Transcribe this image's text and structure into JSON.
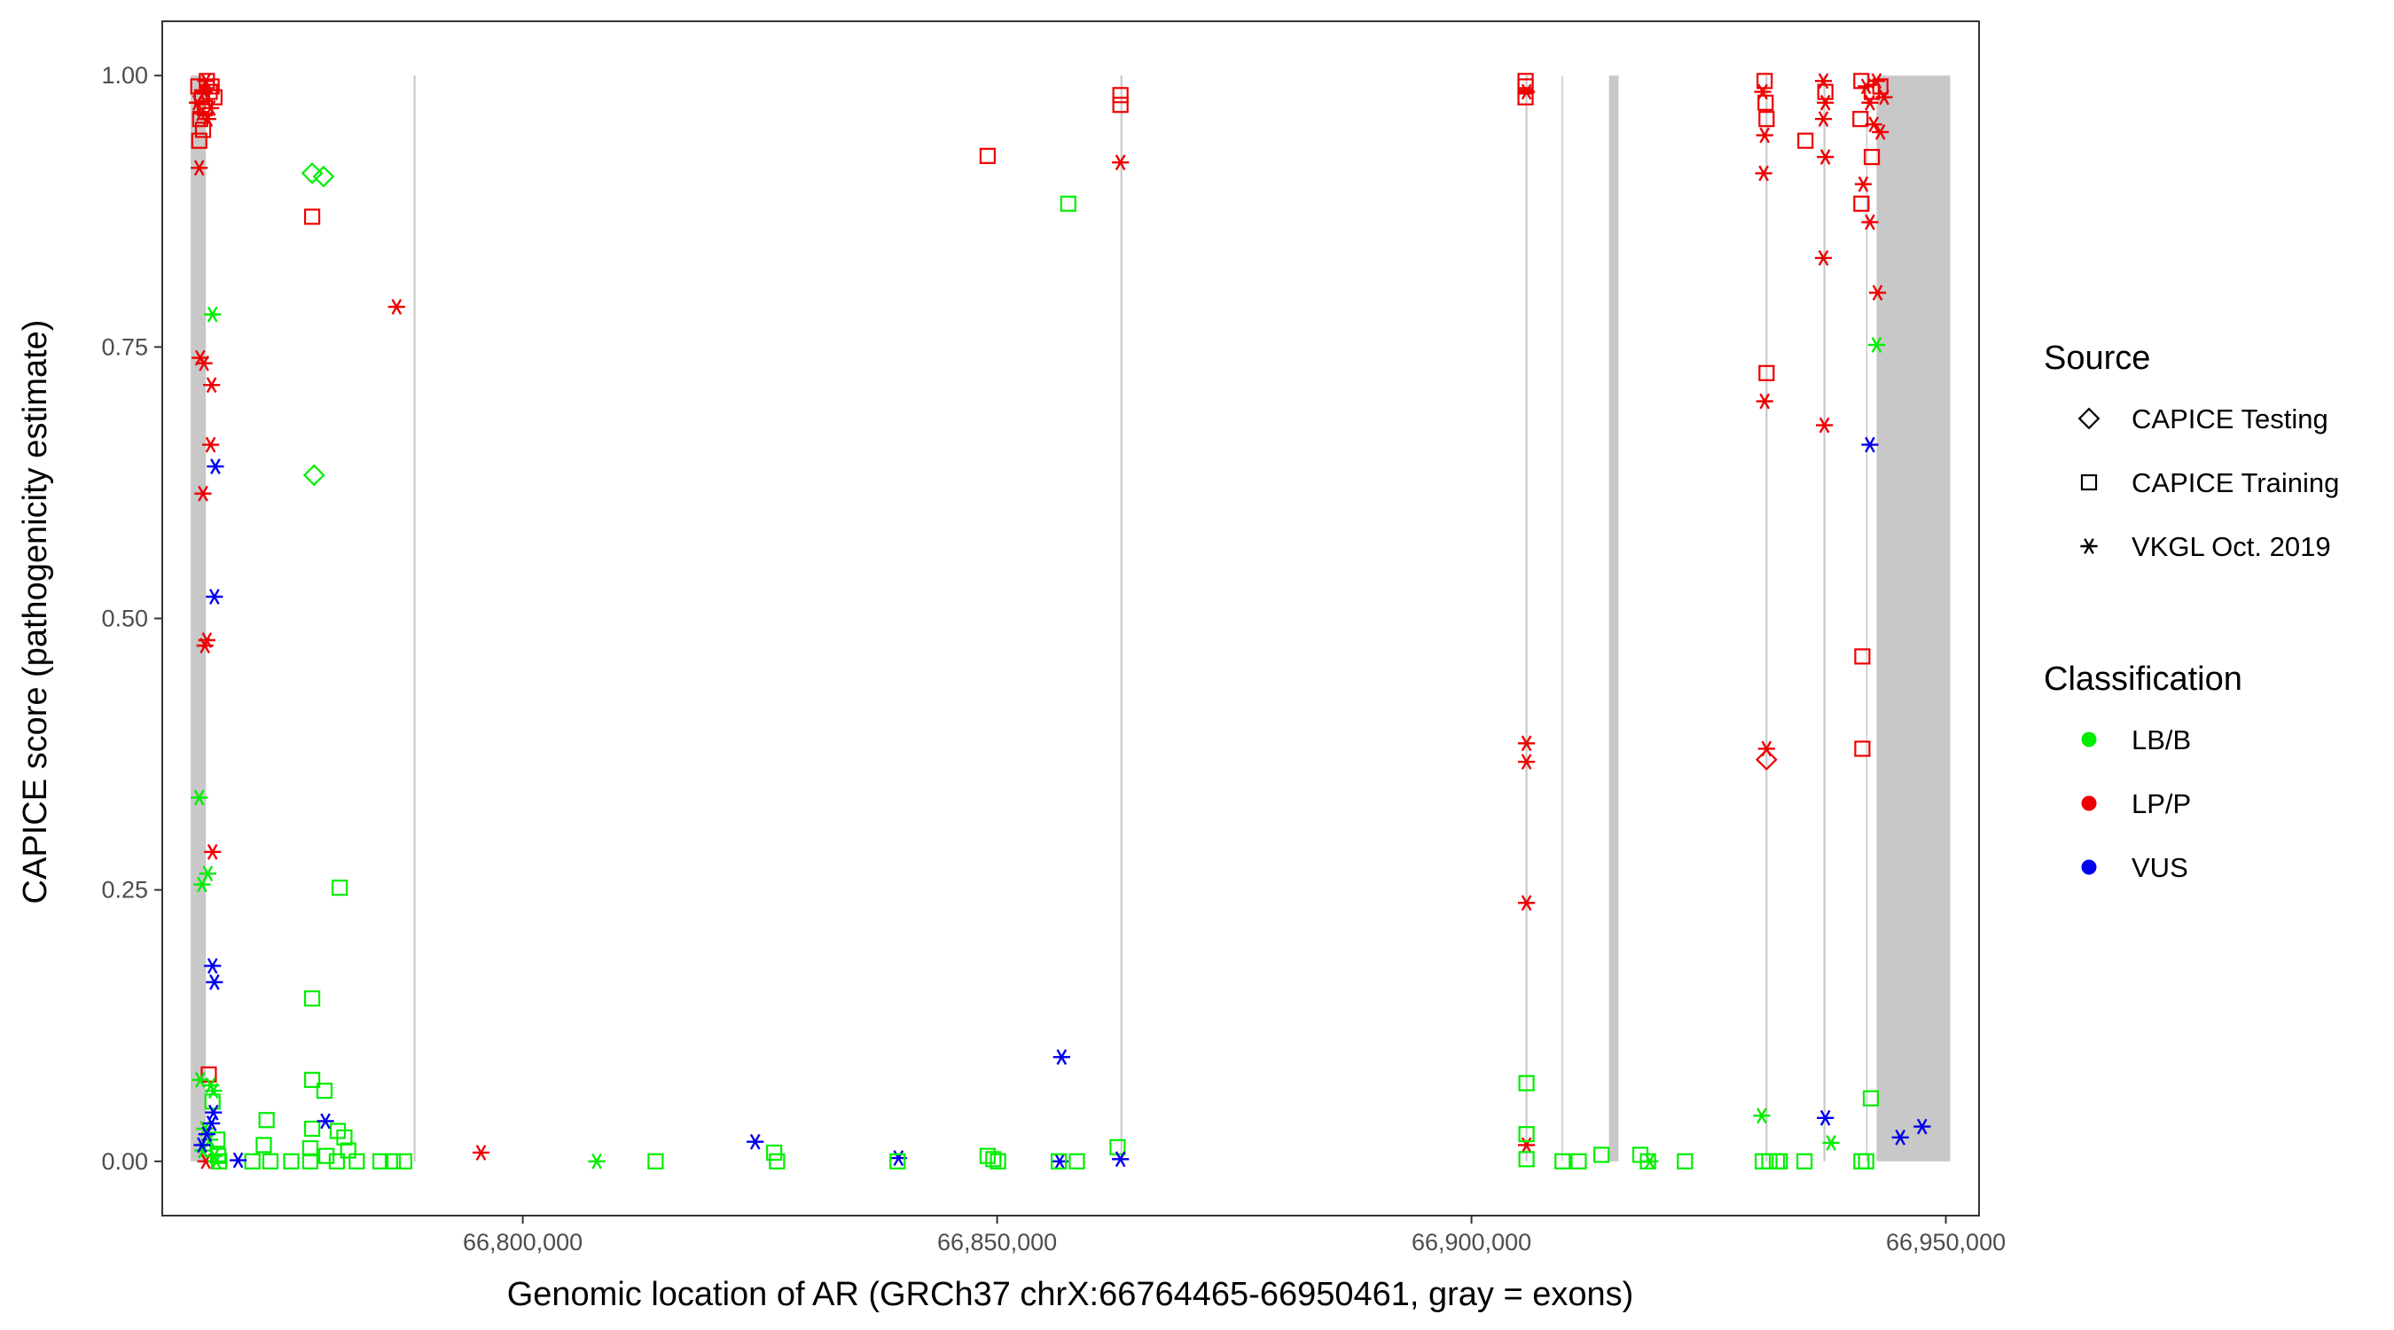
{
  "chart_data": {
    "type": "scatter",
    "title": "",
    "xlabel": "Genomic location of AR (GRCh37 chrX:66764465-66950461, gray = exons)",
    "ylabel": "CAPICE score (pathogenicity estimate)",
    "xlim": [
      66762000,
      66953500
    ],
    "ylim": [
      -0.05,
      1.05
    ],
    "xticks": [
      66800000,
      66850000,
      66900000,
      66950000
    ],
    "xtick_labels": [
      "66,800,000",
      "66,850,000",
      "66,900,000",
      "66,950,000"
    ],
    "yticks": [
      0,
      0.25,
      0.5,
      0.75,
      1
    ],
    "ytick_labels": [
      "0.00",
      "0.25",
      "0.50",
      "0.75",
      "1.00"
    ],
    "grid": false,
    "exons": [
      [
        66765000,
        66766600
      ],
      [
        66788500,
        66788700
      ],
      [
        66863000,
        66863200
      ],
      [
        66905700,
        66905900
      ],
      [
        66909500,
        66909600
      ],
      [
        66914500,
        66915500
      ],
      [
        66931000,
        66931200
      ],
      [
        66937100,
        66937300
      ],
      [
        66941600,
        66941700
      ],
      [
        66942700,
        66950461
      ]
    ],
    "legend": {
      "source_title": "Source",
      "source_items": [
        {
          "label": "CAPICE Testing",
          "shape": "diamond"
        },
        {
          "label": "CAPICE Training",
          "shape": "square"
        },
        {
          "label": "VKGL Oct. 2019",
          "shape": "asterisk"
        }
      ],
      "class_title": "Classification",
      "class_items": [
        {
          "label": "LB/B",
          "color": "#00ee00"
        },
        {
          "label": "LP/P",
          "color": "#ee0000"
        },
        {
          "label": "VUS",
          "color": "#0000ee"
        }
      ],
      "placement": "right"
    },
    "colors": {
      "LB/B": "#00ee00",
      "LP/P": "#ee0000",
      "VUS": "#0000ee"
    },
    "points": [
      [
        66765800,
        0.99,
        "training",
        "LP/P"
      ],
      [
        66766200,
        0.98,
        "training",
        "LP/P"
      ],
      [
        66766500,
        0.97,
        "training",
        "LP/P"
      ],
      [
        66766000,
        0.96,
        "training",
        "LP/P"
      ],
      [
        66766700,
        0.995,
        "training",
        "LP/P"
      ],
      [
        66767200,
        0.99,
        "training",
        "LP/P"
      ],
      [
        66767000,
        0.985,
        "training",
        "LP/P"
      ],
      [
        66765900,
        0.94,
        "training",
        "LP/P"
      ],
      [
        66766300,
        0.95,
        "training",
        "LP/P"
      ],
      [
        66767500,
        0.98,
        "training",
        "LP/P"
      ],
      [
        66765700,
        0.975,
        "vkgl",
        "LP/P"
      ],
      [
        66766100,
        0.965,
        "vkgl",
        "LP/P"
      ],
      [
        66766400,
        0.985,
        "vkgl",
        "LP/P"
      ],
      [
        66766800,
        0.96,
        "vkgl",
        "LP/P"
      ],
      [
        66767100,
        0.97,
        "vkgl",
        "LP/P"
      ],
      [
        66765900,
        0.915,
        "vkgl",
        "LP/P"
      ],
      [
        66766600,
        0.995,
        "vkgl",
        "LP/P"
      ],
      [
        66766000,
        0.74,
        "vkgl",
        "LP/P"
      ],
      [
        66766400,
        0.735,
        "vkgl",
        "LP/P"
      ],
      [
        66767200,
        0.715,
        "vkgl",
        "LP/P"
      ],
      [
        66767100,
        0.66,
        "vkgl",
        "LP/P"
      ],
      [
        66766300,
        0.615,
        "vkgl",
        "LP/P"
      ],
      [
        66766700,
        0.48,
        "vkgl",
        "LP/P"
      ],
      [
        66766500,
        0.475,
        "vkgl",
        "LP/P"
      ],
      [
        66767300,
        0.285,
        "vkgl",
        "LP/P"
      ],
      [
        66766900,
        0.08,
        "training",
        "LP/P"
      ],
      [
        66766600,
        0.0,
        "vkgl",
        "LP/P"
      ],
      [
        66767300,
        0.78,
        "vkgl",
        "LB/B"
      ],
      [
        66765900,
        0.335,
        "vkgl",
        "LB/B"
      ],
      [
        66766200,
        0.255,
        "vkgl",
        "LB/B"
      ],
      [
        66766800,
        0.265,
        "vkgl",
        "LB/B"
      ],
      [
        66766000,
        0.075,
        "vkgl",
        "LB/B"
      ],
      [
        66767100,
        0.07,
        "vkgl",
        "LB/B"
      ],
      [
        66767400,
        0.065,
        "vkgl",
        "LB/B"
      ],
      [
        66766500,
        0.03,
        "vkgl",
        "LB/B"
      ],
      [
        66767000,
        0.02,
        "vkgl",
        "LB/B"
      ],
      [
        66766300,
        0.01,
        "vkgl",
        "LB/B"
      ],
      [
        66767500,
        0.005,
        "vkgl",
        "LB/B"
      ],
      [
        66767700,
        0.0,
        "vkgl",
        "LB/B"
      ],
      [
        66767300,
        0.055,
        "training",
        "LB/B"
      ],
      [
        66767800,
        0.02,
        "training",
        "LB/B"
      ],
      [
        66767900,
        0.005,
        "training",
        "LB/B"
      ],
      [
        66768000,
        0.0,
        "training",
        "LB/B"
      ],
      [
        66767600,
        0.64,
        "vkgl",
        "VUS"
      ],
      [
        66767500,
        0.52,
        "vkgl",
        "VUS"
      ],
      [
        66767300,
        0.18,
        "vkgl",
        "VUS"
      ],
      [
        66767500,
        0.165,
        "vkgl",
        "VUS"
      ],
      [
        66767400,
        0.045,
        "vkgl",
        "VUS"
      ],
      [
        66767200,
        0.035,
        "vkgl",
        "VUS"
      ],
      [
        66766200,
        0.015,
        "vkgl",
        "VUS"
      ],
      [
        66766700,
        0.025,
        "vkgl",
        "VUS"
      ],
      [
        66777800,
        0.91,
        "testing",
        "LB/B"
      ],
      [
        66779000,
        0.907,
        "testing",
        "LB/B"
      ],
      [
        66778000,
        0.632,
        "testing",
        "LB/B"
      ],
      [
        66777800,
        0.87,
        "training",
        "LP/P"
      ],
      [
        66786700,
        0.787,
        "vkgl",
        "LP/P"
      ],
      [
        66780700,
        0.252,
        "training",
        "LB/B"
      ],
      [
        66777800,
        0.15,
        "training",
        "LB/B"
      ],
      [
        66777800,
        0.075,
        "training",
        "LB/B"
      ],
      [
        66779100,
        0.065,
        "training",
        "LB/B"
      ],
      [
        66773000,
        0.038,
        "training",
        "LB/B"
      ],
      [
        66777800,
        0.03,
        "training",
        "LB/B"
      ],
      [
        66780500,
        0.028,
        "training",
        "LB/B"
      ],
      [
        66781200,
        0.022,
        "training",
        "LB/B"
      ],
      [
        66772700,
        0.015,
        "training",
        "LB/B"
      ],
      [
        66777600,
        0.012,
        "training",
        "LB/B"
      ],
      [
        66781600,
        0.01,
        "training",
        "LB/B"
      ],
      [
        66779300,
        0.005,
        "training",
        "LB/B"
      ],
      [
        66771500,
        0.0,
        "training",
        "LB/B"
      ],
      [
        66773400,
        0.0,
        "training",
        "LB/B"
      ],
      [
        66775600,
        0.0,
        "training",
        "LB/B"
      ],
      [
        66777600,
        0.0,
        "training",
        "LB/B"
      ],
      [
        66780400,
        0.0,
        "training",
        "LB/B"
      ],
      [
        66782500,
        0.0,
        "training",
        "LB/B"
      ],
      [
        66785000,
        0.0,
        "training",
        "LB/B"
      ],
      [
        66786300,
        0.0,
        "training",
        "LB/B"
      ],
      [
        66787500,
        0.0,
        "training",
        "LB/B"
      ],
      [
        66770000,
        0.001,
        "vkgl",
        "VUS"
      ],
      [
        66779200,
        0.037,
        "vkgl",
        "VUS"
      ],
      [
        66795600,
        0.008,
        "vkgl",
        "LP/P"
      ],
      [
        66807800,
        0.0,
        "vkgl",
        "LB/B"
      ],
      [
        66814000,
        0.0,
        "training",
        "LB/B"
      ],
      [
        66826500,
        0.008,
        "training",
        "LB/B"
      ],
      [
        66826800,
        0.0,
        "training",
        "LB/B"
      ],
      [
        66824500,
        0.018,
        "vkgl",
        "VUS"
      ],
      [
        66839600,
        0.003,
        "vkgl",
        "VUS"
      ],
      [
        66839500,
        0.0,
        "training",
        "LB/B"
      ],
      [
        66849000,
        0.005,
        "training",
        "LB/B"
      ],
      [
        66849600,
        0.002,
        "training",
        "LB/B"
      ],
      [
        66850100,
        0.0,
        "training",
        "LB/B"
      ],
      [
        66849000,
        0.926,
        "training",
        "LP/P"
      ],
      [
        66857500,
        0.882,
        "training",
        "LB/B"
      ],
      [
        66856800,
        0.096,
        "vkgl",
        "VUS"
      ],
      [
        66856600,
        0.0,
        "vkgl",
        "VUS"
      ],
      [
        66856500,
        0.0,
        "training",
        "LB/B"
      ],
      [
        66858400,
        0.0,
        "training",
        "LB/B"
      ],
      [
        66862700,
        0.013,
        "training",
        "LB/B"
      ],
      [
        66863000,
        0.002,
        "vkgl",
        "VUS"
      ],
      [
        66863000,
        0.982,
        "training",
        "LP/P"
      ],
      [
        66863000,
        0.973,
        "training",
        "LP/P"
      ],
      [
        66863000,
        0.92,
        "vkgl",
        "LP/P"
      ],
      [
        66905700,
        0.995,
        "training",
        "LP/P"
      ],
      [
        66905700,
        0.99,
        "training",
        "LP/P"
      ],
      [
        66905800,
        0.985,
        "vkgl",
        "LP/P"
      ],
      [
        66905700,
        0.98,
        "training",
        "LP/P"
      ],
      [
        66905800,
        0.385,
        "vkgl",
        "LP/P"
      ],
      [
        66905800,
        0.368,
        "vkgl",
        "LP/P"
      ],
      [
        66905800,
        0.238,
        "vkgl",
        "LP/P"
      ],
      [
        66905800,
        0.015,
        "vkgl",
        "LP/P"
      ],
      [
        66905800,
        0.072,
        "training",
        "LB/B"
      ],
      [
        66905800,
        0.025,
        "training",
        "LB/B"
      ],
      [
        66905800,
        0.002,
        "training",
        "LB/B"
      ],
      [
        66909600,
        0.0,
        "training",
        "LB/B"
      ],
      [
        66911300,
        0.0,
        "training",
        "LB/B"
      ],
      [
        66913700,
        0.006,
        "training",
        "LB/B"
      ],
      [
        66917800,
        0.006,
        "training",
        "LB/B"
      ],
      [
        66918600,
        0.0,
        "training",
        "LB/B"
      ],
      [
        66918800,
        0.0,
        "vkgl",
        "LB/B"
      ],
      [
        66922500,
        0.0,
        "training",
        "LB/B"
      ],
      [
        66930900,
        0.995,
        "training",
        "LP/P"
      ],
      [
        66930700,
        0.985,
        "vkgl",
        "LP/P"
      ],
      [
        66931000,
        0.975,
        "training",
        "LP/P"
      ],
      [
        66931100,
        0.96,
        "training",
        "LP/P"
      ],
      [
        66930900,
        0.945,
        "vkgl",
        "LP/P"
      ],
      [
        66930800,
        0.91,
        "vkgl",
        "LP/P"
      ],
      [
        66931100,
        0.726,
        "training",
        "LP/P"
      ],
      [
        66930900,
        0.7,
        "vkgl",
        "LP/P"
      ],
      [
        66931100,
        0.38,
        "vkgl",
        "LP/P"
      ],
      [
        66931100,
        0.37,
        "testing",
        "LP/P"
      ],
      [
        66930600,
        0.042,
        "vkgl",
        "LB/B"
      ],
      [
        66930700,
        0.0,
        "training",
        "LB/B"
      ],
      [
        66931400,
        0.0,
        "training",
        "LB/B"
      ],
      [
        66932200,
        0.0,
        "training",
        "LB/B"
      ],
      [
        66932500,
        0.0,
        "training",
        "LB/B"
      ],
      [
        66935100,
        0.0,
        "training",
        "LB/B"
      ],
      [
        66935200,
        0.94,
        "training",
        "LP/P"
      ],
      [
        66937100,
        0.995,
        "vkgl",
        "LP/P"
      ],
      [
        66937300,
        0.985,
        "training",
        "LP/P"
      ],
      [
        66937300,
        0.975,
        "vkgl",
        "LP/P"
      ],
      [
        66937100,
        0.96,
        "vkgl",
        "LP/P"
      ],
      [
        66937300,
        0.925,
        "vkgl",
        "LP/P"
      ],
      [
        66937100,
        0.832,
        "vkgl",
        "LP/P"
      ],
      [
        66937200,
        0.678,
        "vkgl",
        "LP/P"
      ],
      [
        66937300,
        0.04,
        "vkgl",
        "VUS"
      ],
      [
        66937900,
        0.017,
        "vkgl",
        "LB/B"
      ],
      [
        66941100,
        0.995,
        "training",
        "LP/P"
      ],
      [
        66941600,
        0.99,
        "vkgl",
        "LP/P"
      ],
      [
        66942200,
        0.985,
        "training",
        "LP/P"
      ],
      [
        66942700,
        0.995,
        "vkgl",
        "LP/P"
      ],
      [
        66943100,
        0.99,
        "training",
        "LP/P"
      ],
      [
        66943500,
        0.98,
        "vkgl",
        "LP/P"
      ],
      [
        66942000,
        0.975,
        "vkgl",
        "LP/P"
      ],
      [
        66941000,
        0.96,
        "training",
        "LP/P"
      ],
      [
        66942400,
        0.955,
        "vkgl",
        "LP/P"
      ],
      [
        66943100,
        0.948,
        "vkgl",
        "LP/P"
      ],
      [
        66942200,
        0.925,
        "training",
        "LP/P"
      ],
      [
        66941300,
        0.9,
        "vkgl",
        "LP/P"
      ],
      [
        66941100,
        0.882,
        "training",
        "LP/P"
      ],
      [
        66942000,
        0.865,
        "vkgl",
        "LP/P"
      ],
      [
        66942800,
        0.8,
        "vkgl",
        "LP/P"
      ],
      [
        66941200,
        0.465,
        "training",
        "LP/P"
      ],
      [
        66941200,
        0.38,
        "training",
        "LP/P"
      ],
      [
        66942700,
        0.752,
        "vkgl",
        "LB/B"
      ],
      [
        66941100,
        0.0,
        "training",
        "LB/B"
      ],
      [
        66941600,
        0.0,
        "training",
        "LB/B"
      ],
      [
        66942100,
        0.058,
        "training",
        "LB/B"
      ],
      [
        66942000,
        0.66,
        "vkgl",
        "VUS"
      ],
      [
        66945200,
        0.022,
        "vkgl",
        "VUS"
      ],
      [
        66947500,
        0.032,
        "vkgl",
        "VUS"
      ]
    ]
  }
}
